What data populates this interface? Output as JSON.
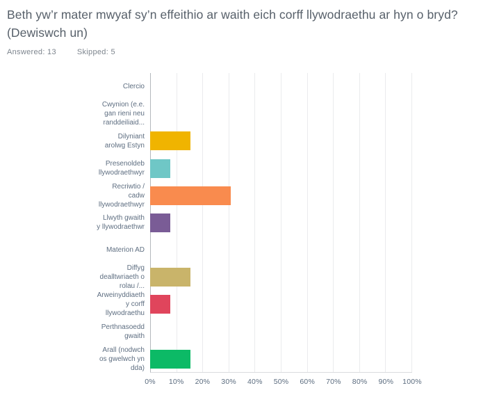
{
  "header": {
    "title": "Beth yw’r mater mwyaf sy’n effeithio ar waith eich corff llywodraethu ar hyn o bryd? (Dewiswch un)",
    "answered": "Answered: 13",
    "skipped": "Skipped: 5"
  },
  "chart_data": {
    "type": "bar",
    "orientation": "horizontal",
    "title": "Beth yw’r mater mwyaf sy’n effeithio ar waith eich corff llywodraethu ar hyn o bryd? (Dewiswch un)",
    "categories": [
      "Clercio",
      "Cwynion (e.e.\ngan rieni neu\nranddeiliaid...",
      "Dilyniant\narolwg Estyn",
      "Presenoldeb\nllywodraethwyr",
      "Recriwtio /\ncadw\nllywodraethwyr",
      "Llwyth gwaith\ny llywodraethwr",
      "Materion AD",
      "Diffyg\ndealltwriaeth o\nrolau /...",
      "Arweinyddiaeth\ny corff\nllywodraethu",
      "Perthnasoedd\ngwaith",
      "Arall (nodwch\nos gwelwch yn\ndda)"
    ],
    "values": [
      0,
      0,
      15.38,
      7.69,
      30.77,
      7.69,
      0,
      15.38,
      7.69,
      0,
      15.38
    ],
    "value_unit": "%",
    "colors": [
      null,
      null,
      "#f0b400",
      "#6fc7c6",
      "#f98b4e",
      "#7a5c96",
      null,
      "#c9b46a",
      "#e0455c",
      null,
      "#0cba66"
    ],
    "xlim": [
      0,
      100
    ],
    "x_ticks": [
      "0%",
      "10%",
      "20%",
      "30%",
      "40%",
      "50%",
      "60%",
      "70%",
      "80%",
      "90%",
      "100%"
    ],
    "grid": "vertical-gridlines",
    "legend": "none",
    "axis_color": "#b3b8bc",
    "gridline_color": "#eaebed"
  }
}
